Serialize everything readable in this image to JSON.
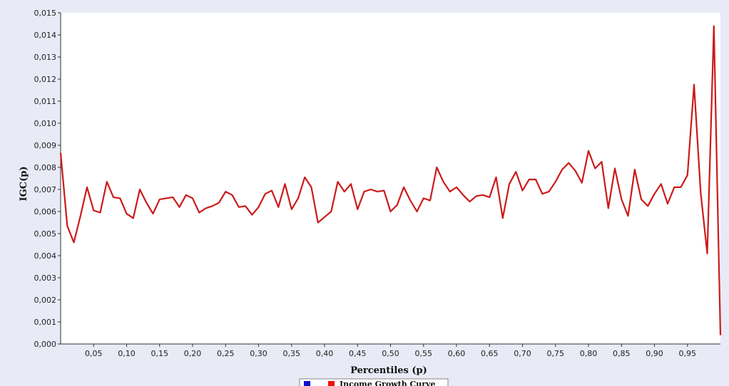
{
  "chart_data": {
    "type": "line",
    "title": "",
    "xlabel": "Percentiles (p)",
    "ylabel": "IGC(p)",
    "xlim": [
      0.0,
      1.0
    ],
    "ylim": [
      0.0,
      0.015
    ],
    "grid": false,
    "legend_position": "bottom-center",
    "x_ticks": [
      "0,05",
      "0,10",
      "0,15",
      "0,20",
      "0,25",
      "0,30",
      "0,35",
      "0,40",
      "0,45",
      "0,50",
      "0,55",
      "0,60",
      "0,65",
      "0,70",
      "0,75",
      "0,80",
      "0,85",
      "0,90",
      "0,95"
    ],
    "y_ticks": [
      "0,000",
      "0,001",
      "0,002",
      "0,003",
      "0,004",
      "0,005",
      "0,006",
      "0,007",
      "0,008",
      "0,009",
      "0,010",
      "0,011",
      "0,012",
      "0,013",
      "0,014",
      "0,015"
    ],
    "legend": [
      {
        "label": "",
        "color": "#1010cc"
      },
      {
        "label": "Income Growth Curve",
        "color": "#ee1111"
      }
    ],
    "series": [
      {
        "name": "Income Growth Curve",
        "color": "#cc1a1a",
        "x": [
          0.0,
          0.01,
          0.02,
          0.03,
          0.04,
          0.05,
          0.06,
          0.07,
          0.08,
          0.09,
          0.1,
          0.11,
          0.12,
          0.13,
          0.14,
          0.15,
          0.16,
          0.17,
          0.18,
          0.19,
          0.2,
          0.21,
          0.22,
          0.23,
          0.24,
          0.25,
          0.26,
          0.27,
          0.28,
          0.29,
          0.3,
          0.31,
          0.32,
          0.33,
          0.34,
          0.35,
          0.36,
          0.37,
          0.38,
          0.39,
          0.4,
          0.41,
          0.42,
          0.43,
          0.44,
          0.45,
          0.46,
          0.47,
          0.48,
          0.49,
          0.5,
          0.51,
          0.52,
          0.53,
          0.54,
          0.55,
          0.56,
          0.57,
          0.58,
          0.59,
          0.6,
          0.61,
          0.62,
          0.63,
          0.64,
          0.65,
          0.66,
          0.67,
          0.68,
          0.69,
          0.7,
          0.71,
          0.72,
          0.73,
          0.74,
          0.75,
          0.76,
          0.77,
          0.78,
          0.79,
          0.8,
          0.81,
          0.82,
          0.83,
          0.84,
          0.85,
          0.86,
          0.87,
          0.88,
          0.89,
          0.9,
          0.91,
          0.92,
          0.93,
          0.94,
          0.95,
          0.96,
          0.97,
          0.98,
          0.99,
          1.0
        ],
        "values": [
          0.00865,
          0.00535,
          0.0046,
          0.0058,
          0.0071,
          0.00605,
          0.00595,
          0.00735,
          0.00665,
          0.0066,
          0.0059,
          0.0057,
          0.007,
          0.0064,
          0.0059,
          0.00655,
          0.0066,
          0.00665,
          0.0062,
          0.00675,
          0.0066,
          0.00595,
          0.00615,
          0.00625,
          0.0064,
          0.0069,
          0.00675,
          0.0062,
          0.00625,
          0.00585,
          0.0062,
          0.0068,
          0.00695,
          0.0062,
          0.00725,
          0.0061,
          0.0066,
          0.00755,
          0.0071,
          0.0055,
          0.00575,
          0.006,
          0.00735,
          0.0069,
          0.00725,
          0.0061,
          0.0069,
          0.007,
          0.0069,
          0.00695,
          0.006,
          0.0063,
          0.0071,
          0.0065,
          0.006,
          0.0066,
          0.0065,
          0.008,
          0.00735,
          0.0069,
          0.0071,
          0.00675,
          0.00645,
          0.0067,
          0.00675,
          0.00665,
          0.00755,
          0.0057,
          0.00725,
          0.0078,
          0.00695,
          0.00745,
          0.00745,
          0.0068,
          0.0069,
          0.00735,
          0.0079,
          0.0082,
          0.00785,
          0.0073,
          0.00875,
          0.00795,
          0.00825,
          0.00615,
          0.00795,
          0.00655,
          0.0058,
          0.0079,
          0.00655,
          0.00625,
          0.0068,
          0.00725,
          0.00635,
          0.0071,
          0.0071,
          0.00765,
          0.01175,
          0.00685,
          0.0041,
          0.0144,
          0.0004
        ]
      }
    ]
  }
}
